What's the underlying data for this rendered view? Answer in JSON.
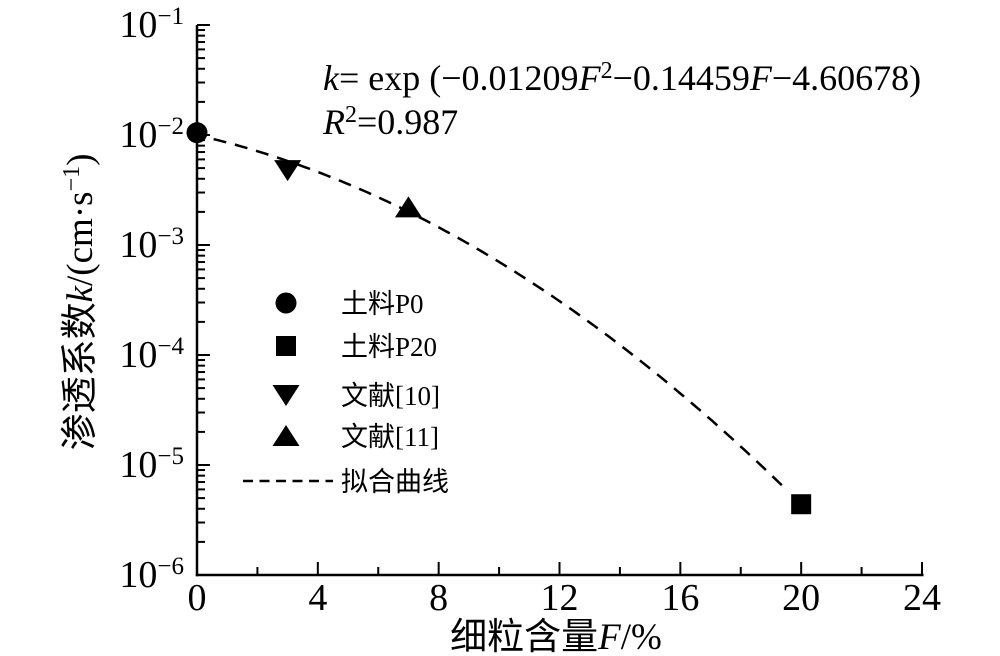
{
  "figure": {
    "background": "#ffffff",
    "ink": "#000000"
  },
  "annotation": {
    "equation_text": "k= exp (−0.01209F²−0.14459F−4.60678)",
    "r_squared_text": "R²=0.987",
    "lines": [
      {
        "segments": [
          {
            "text": "k",
            "italic": true
          },
          {
            "text": "= exp (−0.01209"
          },
          {
            "text": "F",
            "italic": true
          },
          {
            "text": "2",
            "sup": true
          },
          {
            "text": "−0.14459"
          },
          {
            "text": "F",
            "italic": true
          },
          {
            "text": "−4.60678)"
          }
        ]
      },
      {
        "segments": [
          {
            "text": "R",
            "italic": true
          },
          {
            "text": "2",
            "sup": true
          },
          {
            "text": "=0.987"
          }
        ]
      }
    ]
  },
  "chart_data": {
    "type": "scatter",
    "title": "",
    "xlabel": "细粒含量F/%",
    "ylabel": "渗透系数k/(cm·s⁻¹)",
    "xlabel_segments": [
      {
        "text": "细粒含量"
      },
      {
        "text": "F",
        "italic": true
      },
      {
        "text": "/%"
      }
    ],
    "ylabel_segments": [
      {
        "text": "渗透系数"
      },
      {
        "text": "k",
        "italic": true
      },
      {
        "text": "/(cm·s"
      },
      {
        "text": "−1",
        "sup": true
      },
      {
        "text": ")"
      }
    ],
    "x_axis": {
      "min": 0,
      "max": 24,
      "major_ticks": [
        {
          "value": 0,
          "label": "0"
        },
        {
          "value": 4,
          "label": "4"
        },
        {
          "value": 8,
          "label": "8"
        },
        {
          "value": 12,
          "label": "12"
        },
        {
          "value": 16,
          "label": "16"
        },
        {
          "value": 20,
          "label": "20"
        },
        {
          "value": 24,
          "label": "24"
        }
      ],
      "minor_ticks": [
        2,
        6,
        10,
        14,
        18,
        22
      ]
    },
    "y_axis": {
      "scale": "log",
      "min": 1e-06,
      "max": 0.1,
      "major_ticks": [
        {
          "exponent": -1,
          "label_base": "10",
          "label_sup": "−1"
        },
        {
          "exponent": -2,
          "label_base": "10",
          "label_sup": "−2"
        },
        {
          "exponent": -3,
          "label_base": "10",
          "label_sup": "−3"
        },
        {
          "exponent": -4,
          "label_base": "10",
          "label_sup": "−4"
        },
        {
          "exponent": -5,
          "label_base": "10",
          "label_sup": "−5"
        },
        {
          "exponent": -6,
          "label_base": "10",
          "label_sup": "−6"
        }
      ],
      "minor_mantissas": [
        2,
        3,
        4,
        5,
        6,
        7,
        8,
        9
      ]
    },
    "series": [
      {
        "name": "土料P0",
        "marker": "circle",
        "points": [
          {
            "F": 0,
            "k": 0.0105
          }
        ]
      },
      {
        "name": "土料P20",
        "marker": "square",
        "points": [
          {
            "F": 20,
            "k": 4.4e-06
          }
        ]
      },
      {
        "name": "文献[10]",
        "marker": "triangle-down",
        "points": [
          {
            "F": 3,
            "k": 0.0048
          }
        ]
      },
      {
        "name": "文献[11]",
        "marker": "triangle-up",
        "points": [
          {
            "F": 7,
            "k": 0.0022
          }
        ]
      },
      {
        "name": "拟合曲线",
        "marker": "dashed-line",
        "kind": "fit-curve",
        "fit": {
          "model": "k = exp(a·F² + b·F + c)",
          "a": -0.01209,
          "b": -0.14459,
          "c": -4.60678,
          "F_start": 0.55,
          "F_end": 19.45
        },
        "r_squared": 0.987
      }
    ],
    "legend": {
      "position": "inside-center-left",
      "entries": [
        {
          "marker": "circle",
          "label": "土料P0"
        },
        {
          "marker": "square",
          "label": "土料P20"
        },
        {
          "marker": "triangle-down",
          "label": "文献[10]"
        },
        {
          "marker": "triangle-up",
          "label": "文献[11]"
        },
        {
          "marker": "dashed-line",
          "label": "拟合曲线"
        }
      ]
    }
  }
}
